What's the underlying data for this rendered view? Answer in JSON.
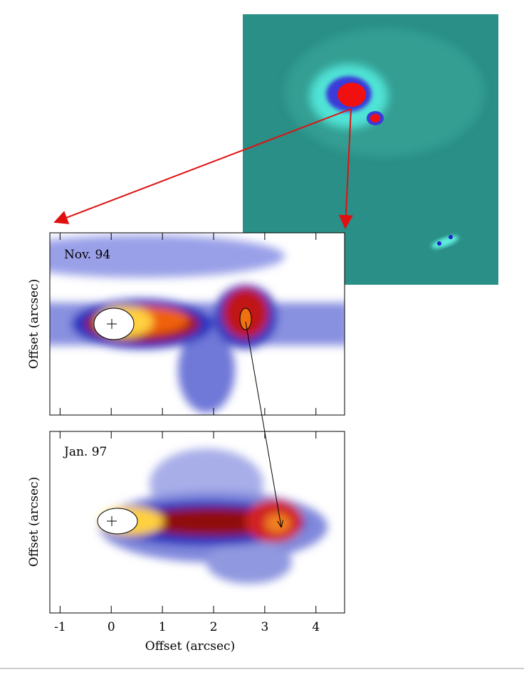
{
  "figure": {
    "x_axis": {
      "label": "Offset (arcsec)",
      "xlim": [
        -1.2,
        4.56
      ],
      "xticks": [
        -1,
        0,
        1,
        2,
        3,
        4
      ]
    },
    "panels": [
      {
        "label": "Nov. 94",
        "y_label": "Offset (arcsec)"
      },
      {
        "label": "Jan. 97",
        "y_label": "Offset (arcsec)"
      }
    ]
  }
}
